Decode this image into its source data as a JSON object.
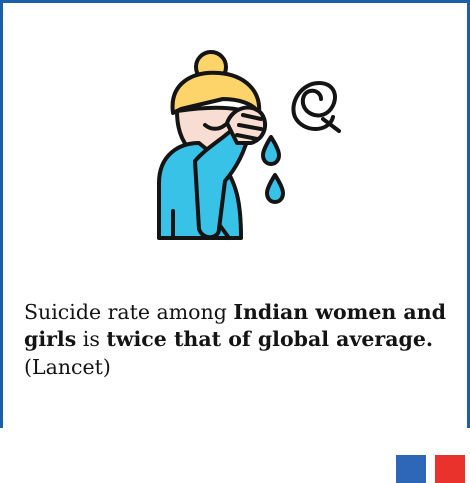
{
  "illustration": {
    "icon": "crying-woman-icon",
    "colors": {
      "hair": "#fcd46a",
      "skin": "#f8ddd2",
      "shirt": "#39c2e8",
      "tears": "#39c2e8",
      "outline": "#141414"
    }
  },
  "statement": {
    "part1": "Suicide rate among ",
    "part2_bold": "Indian women and girls",
    "part3": " is ",
    "part4_bold": "twice that of global average.",
    "part5": " (Lancet)"
  },
  "colors": {
    "border": "#1b5fa8",
    "accent_blue": "#2e66b8",
    "accent_red": "#e8322b"
  }
}
